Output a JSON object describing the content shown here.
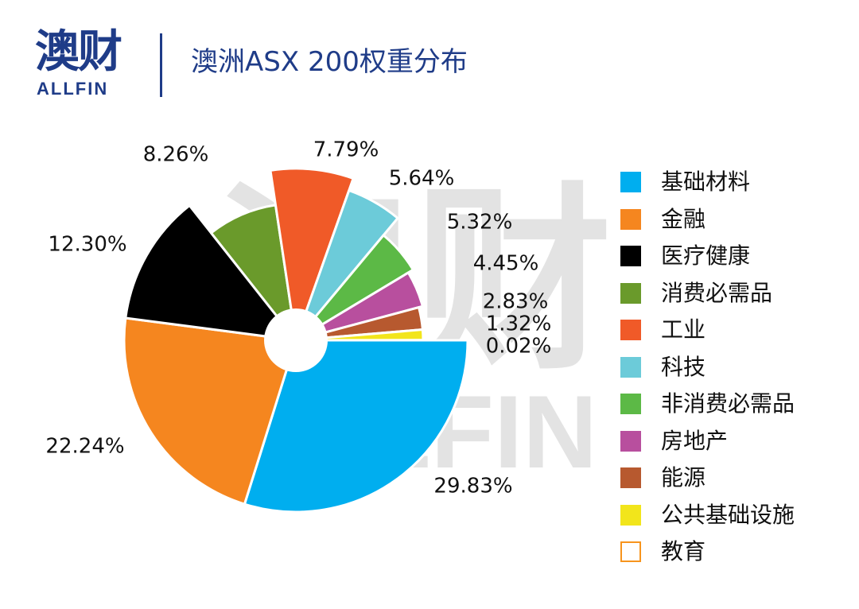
{
  "header": {
    "logo_cn": "澳财",
    "logo_en": "ALLFIN",
    "title": "澳洲ASX 200权重分布"
  },
  "colors": {
    "brand": "#1f3c88",
    "watermark": "#e3e3e3"
  },
  "watermark": {
    "cn": "澳财",
    "en": "ALLFIN"
  },
  "chart_data": {
    "type": "pie",
    "title": "澳洲ASX 200权重分布",
    "legend_position": "right",
    "donut_hole": true,
    "slices": [
      {
        "label": "基础材料",
        "value": 29.83,
        "display": "29.83%",
        "color": "#00aeef"
      },
      {
        "label": "金融",
        "value": 22.24,
        "display": "22.24%",
        "color": "#f5861f"
      },
      {
        "label": "医疗健康",
        "value": 12.3,
        "display": "12.30%",
        "color": "#000000"
      },
      {
        "label": "消费必需品",
        "value": 8.26,
        "display": "8.26%",
        "color": "#6a9a2b"
      },
      {
        "label": "工业",
        "value": 7.79,
        "display": "7.79%",
        "color": "#f05a28"
      },
      {
        "label": "科技",
        "value": 5.64,
        "display": "5.64%",
        "color": "#6ccbd9"
      },
      {
        "label": "非消费必需品",
        "value": 5.32,
        "display": "5.32%",
        "color": "#5cb946"
      },
      {
        "label": "房地产",
        "value": 4.45,
        "display": "4.45%",
        "color": "#b84f9e"
      },
      {
        "label": "能源",
        "value": 2.83,
        "display": "2.83%",
        "color": "#b7592f"
      },
      {
        "label": "公共基础设施",
        "value": 1.32,
        "display": "1.32%",
        "color": "#f2e51b"
      },
      {
        "label": "教育",
        "value": 0.02,
        "display": "0.02%",
        "color": "#f7941d"
      }
    ]
  }
}
